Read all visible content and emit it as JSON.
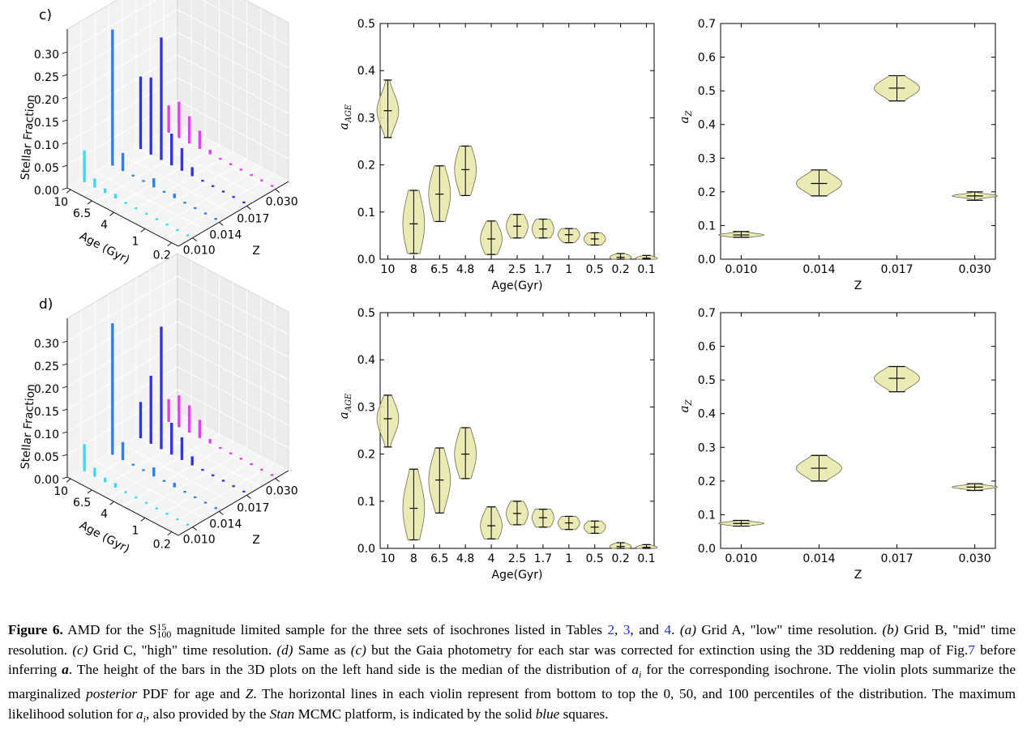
{
  "panels": [
    {
      "label": "c)",
      "bars3d": {
        "zlabel": "Stellar Fraction",
        "xlabel": "Age (Gyr)",
        "ylabel": "Z",
        "ztick_labels": [
          "0.00",
          "0.05",
          "0.10",
          "0.15",
          "0.20",
          "0.25",
          "0.30"
        ],
        "age_tick_labels": [
          "10",
          "6.5",
          "4",
          "1",
          "0.2"
        ],
        "z_tick_labels": [
          "0.010",
          "0.014",
          "0.017",
          "0.030"
        ]
      },
      "age_violin": {
        "xlabel": "Age(Gyr)",
        "ylabel": "a_AGE"
      },
      "z_violin": {
        "xlabel": "Z",
        "ylabel": "a_Z"
      }
    },
    {
      "label": "d)",
      "bars3d": {
        "zlabel": "Stellar Fraction",
        "xlabel": "Age (Gyr)",
        "ylabel": "Z",
        "ztick_labels": [
          "0.00",
          "0.05",
          "0.10",
          "0.15",
          "0.20",
          "0.25",
          "0.30"
        ],
        "age_tick_labels": [
          "10",
          "6.5",
          "4",
          "1",
          "0.2"
        ],
        "z_tick_labels": [
          "0.010",
          "0.014",
          "0.017",
          "0.030"
        ]
      },
      "age_violin": {
        "xlabel": "Age(Gyr)",
        "ylabel": "a_AGE"
      },
      "z_violin": {
        "xlabel": "Z",
        "ylabel": "a_Z"
      }
    }
  ],
  "chart_data": [
    {
      "type": "bar",
      "panel": "c)",
      "z_categories": [
        "0.010",
        "0.014",
        "0.017",
        "0.030"
      ],
      "series": [
        {
          "z": "0.010",
          "color": "#3fd9f0",
          "values": [
            0.07,
            0.02,
            0.01,
            0.01,
            0.0,
            0.0,
            0.0,
            0.0,
            0.0,
            0.0,
            0.0
          ]
        },
        {
          "z": "0.014",
          "color": "#2f7ff0",
          "values": [
            0.3,
            0.04,
            0.0,
            0.0,
            0.02,
            0.0,
            0.01,
            0.0,
            0.0,
            0.0,
            0.0
          ]
        },
        {
          "z": "0.017",
          "color": "#3333e6",
          "values": [
            0.16,
            0.17,
            0.27,
            0.07,
            0.05,
            0.02,
            0.0,
            0.0,
            0.0,
            0.0,
            0.0
          ]
        },
        {
          "z": "0.030",
          "color": "#e040f0",
          "values": [
            0.06,
            0.08,
            0.06,
            0.04,
            0.01,
            0.0,
            0.0,
            0.0,
            0.0,
            0.0,
            0.0
          ]
        }
      ],
      "zlim": [
        0,
        0.35
      ]
    },
    {
      "type": "violin",
      "panel": "c)",
      "categories": [
        "10",
        "8",
        "6.5",
        "4.8",
        "4",
        "2.5",
        "1.7",
        "1",
        "0.5",
        "0.2",
        "0.1"
      ],
      "xlabel": "Age(Gyr)",
      "ylabel": "a_AGE",
      "ylim": [
        0,
        0.5
      ],
      "yticks": [
        "0.0",
        "0.1",
        "0.2",
        "0.3",
        "0.4",
        "0.5"
      ],
      "min": [
        0.258,
        0.012,
        0.08,
        0.135,
        0.01,
        0.045,
        0.045,
        0.035,
        0.03,
        0.0,
        0.0
      ],
      "median": [
        0.315,
        0.075,
        0.138,
        0.19,
        0.043,
        0.07,
        0.064,
        0.052,
        0.043,
        0.004,
        0.002
      ],
      "max": [
        0.38,
        0.146,
        0.198,
        0.24,
        0.081,
        0.095,
        0.085,
        0.065,
        0.056,
        0.012,
        0.008
      ],
      "spread": [
        0.035,
        0.06,
        0.05,
        0.045,
        0.03,
        0.025,
        0.022,
        0.015,
        0.013,
        0.006,
        0.004
      ]
    },
    {
      "type": "violin",
      "panel": "c)",
      "categories": [
        "0.010",
        "0.014",
        "0.017",
        "0.030"
      ],
      "xlabel": "Z",
      "ylabel": "a_Z",
      "ylim": [
        0,
        0.7
      ],
      "yticks": [
        "0.0",
        "0.1",
        "0.2",
        "0.3",
        "0.4",
        "0.5",
        "0.6",
        "0.7"
      ],
      "min": [
        0.065,
        0.188,
        0.47,
        0.175
      ],
      "median": [
        0.072,
        0.225,
        0.508,
        0.188
      ],
      "max": [
        0.082,
        0.265,
        0.545,
        0.2
      ],
      "spread": [
        0.005,
        0.025,
        0.025,
        0.005
      ]
    },
    {
      "type": "bar",
      "panel": "d)",
      "z_categories": [
        "0.010",
        "0.014",
        "0.017",
        "0.030"
      ],
      "series": [
        {
          "z": "0.010",
          "color": "#3fd9f0",
          "values": [
            0.06,
            0.02,
            0.01,
            0.01,
            0.0,
            0.0,
            0.0,
            0.0,
            0.0,
            0.0,
            0.0
          ]
        },
        {
          "z": "0.014",
          "color": "#2f7ff0",
          "values": [
            0.29,
            0.04,
            0.0,
            0.0,
            0.02,
            0.0,
            0.01,
            0.0,
            0.0,
            0.0,
            0.0
          ]
        },
        {
          "z": "0.017",
          "color": "#3333e6",
          "values": [
            0.08,
            0.15,
            0.27,
            0.07,
            0.05,
            0.02,
            0.0,
            0.0,
            0.0,
            0.0,
            0.0
          ]
        },
        {
          "z": "0.030",
          "color": "#e040f0",
          "values": [
            0.05,
            0.07,
            0.06,
            0.04,
            0.01,
            0.0,
            0.0,
            0.0,
            0.0,
            0.0,
            0.0
          ]
        }
      ],
      "zlim": [
        0,
        0.35
      ]
    },
    {
      "type": "violin",
      "panel": "d)",
      "categories": [
        "10",
        "8",
        "6.5",
        "4.8",
        "4",
        "2.5",
        "1.7",
        "1",
        "0.5",
        "0.2",
        "0.1"
      ],
      "xlabel": "Age(Gyr)",
      "ylabel": "a_AGE",
      "ylim": [
        0,
        0.5
      ],
      "yticks": [
        "0.0",
        "0.1",
        "0.2",
        "0.3",
        "0.4",
        "0.5"
      ],
      "min": [
        0.215,
        0.018,
        0.075,
        0.148,
        0.02,
        0.05,
        0.045,
        0.04,
        0.032,
        0.0,
        0.0
      ],
      "median": [
        0.275,
        0.085,
        0.145,
        0.2,
        0.048,
        0.074,
        0.065,
        0.054,
        0.045,
        0.004,
        0.002
      ],
      "max": [
        0.325,
        0.168,
        0.213,
        0.256,
        0.088,
        0.1,
        0.083,
        0.068,
        0.058,
        0.012,
        0.008
      ],
      "spread": [
        0.035,
        0.06,
        0.05,
        0.045,
        0.03,
        0.025,
        0.022,
        0.015,
        0.013,
        0.006,
        0.004
      ]
    },
    {
      "type": "violin",
      "panel": "d)",
      "categories": [
        "0.010",
        "0.014",
        "0.017",
        "0.030"
      ],
      "xlabel": "Z",
      "ylabel": "a_Z",
      "ylim": [
        0,
        0.7
      ],
      "yticks": [
        "0.0",
        "0.1",
        "0.2",
        "0.3",
        "0.4",
        "0.5",
        "0.6",
        "0.7"
      ],
      "min": [
        0.066,
        0.2,
        0.465,
        0.172
      ],
      "median": [
        0.074,
        0.238,
        0.505,
        0.182
      ],
      "max": [
        0.083,
        0.276,
        0.54,
        0.192
      ],
      "spread": [
        0.005,
        0.025,
        0.025,
        0.005
      ]
    }
  ],
  "caption": {
    "figure_label": "Figure 6.",
    "t1": "AMD for the S",
    "sup": "15",
    "sub": "100",
    "t2": " magnitude limited sample for the three sets of isochrones listed in Tables ",
    "ref_table1": "2",
    "t3": ", ",
    "ref_table2": "3",
    "t4": ", and ",
    "ref_table3": "4",
    "t5": ". ",
    "a_label": "(a)",
    "a_text": " Grid A, \"low\" time resolution. ",
    "b_label": "(b)",
    "b_text": " Grid B, \"mid\" time resolution. ",
    "c_label": "(c)",
    "c_text": " Grid C, \"high\" time resolution. ",
    "d_label": "(d)",
    "d_text1": " Same as ",
    "d_c": "(c)",
    "d_text2": " but the Gaia photometry for each star was corrected for extinction using the 3D reddening map of Fig.",
    "ref_fig": "7",
    "t6": " before inferring ",
    "a_bold": "a",
    "t7": ". The height of the bars in the 3D plots on the left hand side is the median of the distribution of ",
    "ai1": "a",
    "ai1_sub": "i",
    "t8": " for the corresponding isochrone. The violin plots summarize the marginalized ",
    "posterior": "posterior",
    "t9": " PDF for age and ",
    "zsym": "Z",
    "t10": ". The horizontal lines in each violin represent from bottom to top the 0, 50, and 100 percentiles of the distribution. The maximum likelihood solution for ",
    "ai2": "a",
    "ai2_sub": "i",
    "t11": ", also provided by the ",
    "stan": "Stan",
    "t12": " MCMC platform, is indicated by the solid ",
    "blue": "blue",
    "t13": " squares."
  }
}
